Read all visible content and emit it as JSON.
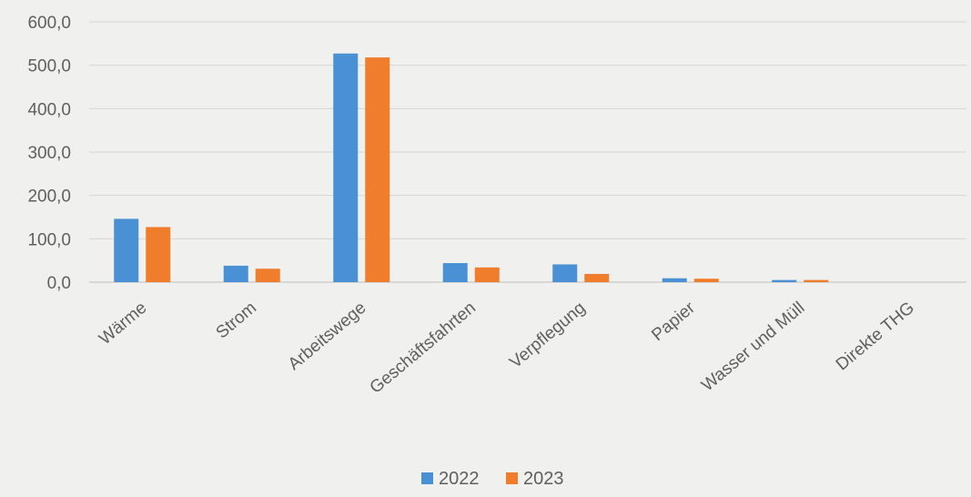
{
  "chart_data": {
    "type": "bar",
    "categories": [
      "Wärme",
      "Strom",
      "Arbeitswege",
      "Geschäftsfahrten",
      "Verpflegung",
      "Papier",
      "Wasser und Müll",
      "Direkte THG"
    ],
    "series": [
      {
        "name": "2022",
        "color": "#4a90d4",
        "values": [
          146,
          38,
          527,
          44,
          41,
          9,
          5,
          0
        ]
      },
      {
        "name": "2023",
        "color": "#ef7d2c",
        "values": [
          127,
          31,
          518,
          34,
          19,
          8,
          5,
          0
        ]
      }
    ],
    "yticks": [
      "0,0",
      "100,0",
      "200,0",
      "300,0",
      "400,0",
      "500,0",
      "600,0"
    ],
    "ylim": [
      0,
      600
    ],
    "grid": true,
    "legend_position": "bottom-center"
  }
}
